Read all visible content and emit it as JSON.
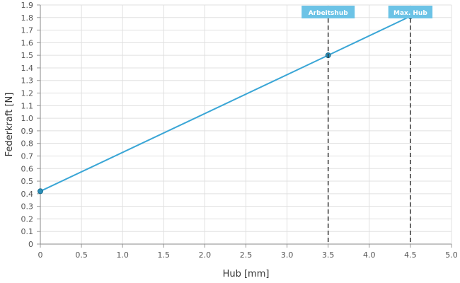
{
  "chart_data": {
    "type": "line",
    "xlabel": "Hub [mm]",
    "ylabel": "Federkraft [N]",
    "xlim": [
      0,
      5
    ],
    "ylim": [
      0,
      1.9
    ],
    "x_ticks": [
      "0",
      "0.5",
      "1.0",
      "1.5",
      "2.0",
      "2.5",
      "3.0",
      "3.5",
      "4.0",
      "4.5",
      "5.0"
    ],
    "y_ticks": [
      "0",
      "0.1",
      "0.2",
      "0.3",
      "0.4",
      "0.5",
      "0.6",
      "0.7",
      "0.8",
      "0.9",
      "1.0",
      "1.1",
      "1.2",
      "1.3",
      "1.4",
      "1.5",
      "1.6",
      "1.7",
      "1.8",
      "1.9"
    ],
    "grid": true,
    "series": [
      {
        "x": [
          0,
          3.5,
          4.5
        ],
        "y": [
          0.42,
          1.5,
          1.81
        ]
      }
    ],
    "markers": [
      {
        "label": "Arbeitshub",
        "x": 3.5
      },
      {
        "label": "Max. Hub",
        "x": 4.5
      }
    ],
    "colors": {
      "line": "#3aa6d6",
      "point": "#2b8fb8",
      "flag": "#6cc3e6",
      "marker_line": "#333333",
      "grid": "#e0e0e0"
    }
  }
}
